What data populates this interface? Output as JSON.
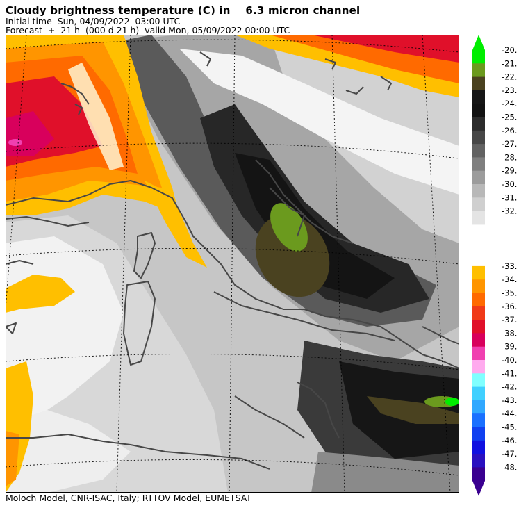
{
  "header": {
    "title": "Cloudy brightness temperature (C) in    6.3 micron channel",
    "line1": "Initial time  Sun, 04/09/2022  03:00 UTC",
    "line2": "Forecast  +  21 h  (000 d 21 h)  valid Mon, 05/09/2022 00:00 UTC"
  },
  "footer": "Moloch Model, CNR-ISAC, Italy; RTTOV Model, EUMETSAT",
  "colorbar": {
    "upper": [
      {
        "label": "-20.",
        "color": "#00ee00"
      },
      {
        "label": "-21.",
        "color": "#6b9a1e"
      },
      {
        "label": "-22.",
        "color": "#4a4220"
      },
      {
        "label": "-23.",
        "color": "#161616"
      },
      {
        "label": "-24.",
        "color": "#121212"
      },
      {
        "label": "-25.",
        "color": "#2c2c2c"
      },
      {
        "label": "-26.",
        "color": "#474747"
      },
      {
        "label": "-27.",
        "color": "#626262"
      },
      {
        "label": "-28.",
        "color": "#7f7f7f"
      },
      {
        "label": "-29.",
        "color": "#9c9c9c"
      },
      {
        "label": "-30.",
        "color": "#b8b8b8"
      },
      {
        "label": "-31.",
        "color": "#cfcfcf"
      },
      {
        "label": "-32.",
        "color": "#e4e4e4"
      }
    ],
    "lower": [
      {
        "label": "-33.",
        "color": "#ffbf00"
      },
      {
        "label": "-34.",
        "color": "#ff9500"
      },
      {
        "label": "-35.",
        "color": "#ff6a00"
      },
      {
        "label": "-36.",
        "color": "#f03a18"
      },
      {
        "label": "-37.",
        "color": "#e0102a"
      },
      {
        "label": "-38.",
        "color": "#d8005c"
      },
      {
        "label": "-39.",
        "color": "#f040b0"
      },
      {
        "label": "-40.",
        "color": "#ffaaee"
      },
      {
        "label": "-41.",
        "color": "#80ffff"
      },
      {
        "label": "-42.",
        "color": "#40d0ff"
      },
      {
        "label": "-43.",
        "color": "#30a8ff"
      },
      {
        "label": "-44.",
        "color": "#1a70ff"
      },
      {
        "label": "-45.",
        "color": "#1040f0"
      },
      {
        "label": "-46.",
        "color": "#1010e0"
      },
      {
        "label": "-47.",
        "color": "#2a10c0"
      },
      {
        "label": "-48.",
        "color": "#3a0090"
      }
    ],
    "top_arrow_color": "#00ee00",
    "bottom_arrow_color": "#3a0090"
  }
}
